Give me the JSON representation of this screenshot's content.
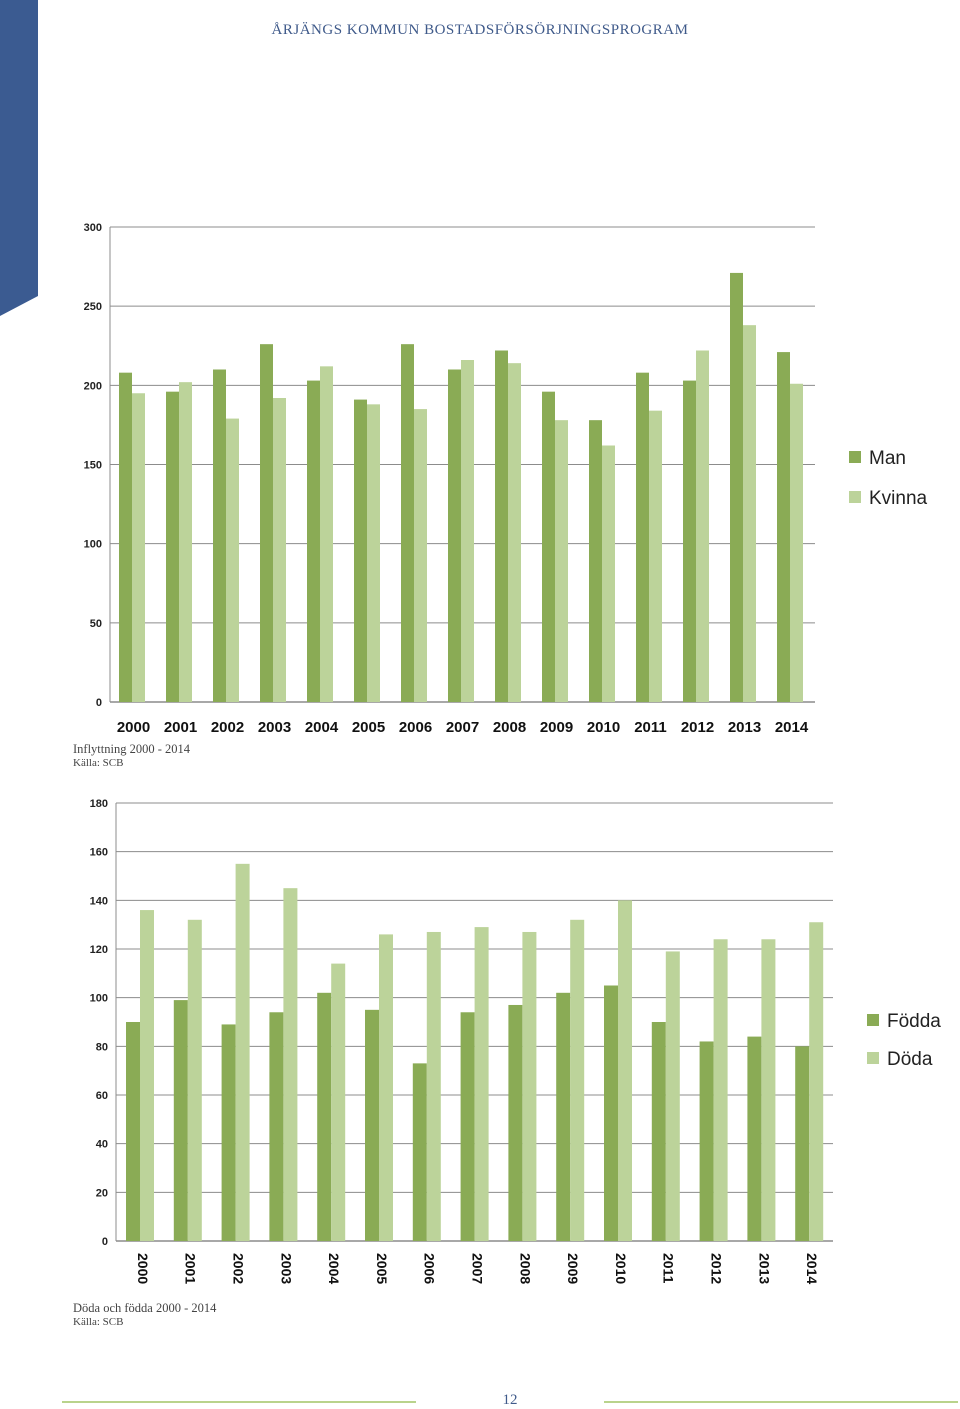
{
  "header": {
    "title": "ÅRJÄNGS KOMMUN BOSTADSFÖRSÖRJNINGSPROGRAM"
  },
  "colors": {
    "brand_blue": "#3b5b91",
    "series_dark": "#8aab55",
    "series_light": "#bcd39a",
    "footer_line": "#b9d38c"
  },
  "chart_data": [
    {
      "type": "bar",
      "title": "",
      "categories": [
        "2000",
        "2001",
        "2002",
        "2003",
        "2004",
        "2005",
        "2006",
        "2007",
        "2008",
        "2009",
        "2010",
        "2011",
        "2012",
        "2013",
        "2014"
      ],
      "series": [
        {
          "name": "Man",
          "values": [
            208,
            196,
            210,
            226,
            203,
            191,
            226,
            210,
            222,
            196,
            178,
            208,
            203,
            271,
            221
          ]
        },
        {
          "name": "Kvinna",
          "values": [
            195,
            202,
            179,
            192,
            212,
            188,
            185,
            216,
            214,
            178,
            162,
            184,
            222,
            238,
            201
          ]
        }
      ],
      "ylim": [
        0,
        300
      ],
      "yticks": [
        0,
        50,
        100,
        150,
        200,
        250,
        300
      ],
      "grid": true,
      "legend": "right",
      "xlabel": "",
      "ylabel": ""
    },
    {
      "type": "bar",
      "title": "",
      "categories": [
        "2000",
        "2001",
        "2002",
        "2003",
        "2004",
        "2005",
        "2006",
        "2007",
        "2008",
        "2009",
        "2010",
        "2011",
        "2012",
        "2013",
        "2014"
      ],
      "series": [
        {
          "name": "Födda",
          "values": [
            90,
            99,
            89,
            94,
            102,
            95,
            73,
            94,
            97,
            102,
            105,
            90,
            82,
            84,
            80
          ]
        },
        {
          "name": "Döda",
          "values": [
            136,
            132,
            155,
            145,
            114,
            126,
            127,
            129,
            127,
            132,
            140,
            119,
            124,
            124,
            131
          ]
        }
      ],
      "ylim": [
        0,
        180
      ],
      "yticks": [
        0,
        20,
        40,
        60,
        80,
        100,
        120,
        140,
        160,
        180
      ],
      "grid": true,
      "legend": "right",
      "xlabel": "",
      "ylabel": ""
    }
  ],
  "captions": [
    {
      "title": "Inflyttning 2000 - 2014",
      "source": "Källa: SCB"
    },
    {
      "title": "Döda och födda 2000 - 2014",
      "source": "Källa: SCB"
    }
  ],
  "footer": {
    "page_number": "12"
  }
}
